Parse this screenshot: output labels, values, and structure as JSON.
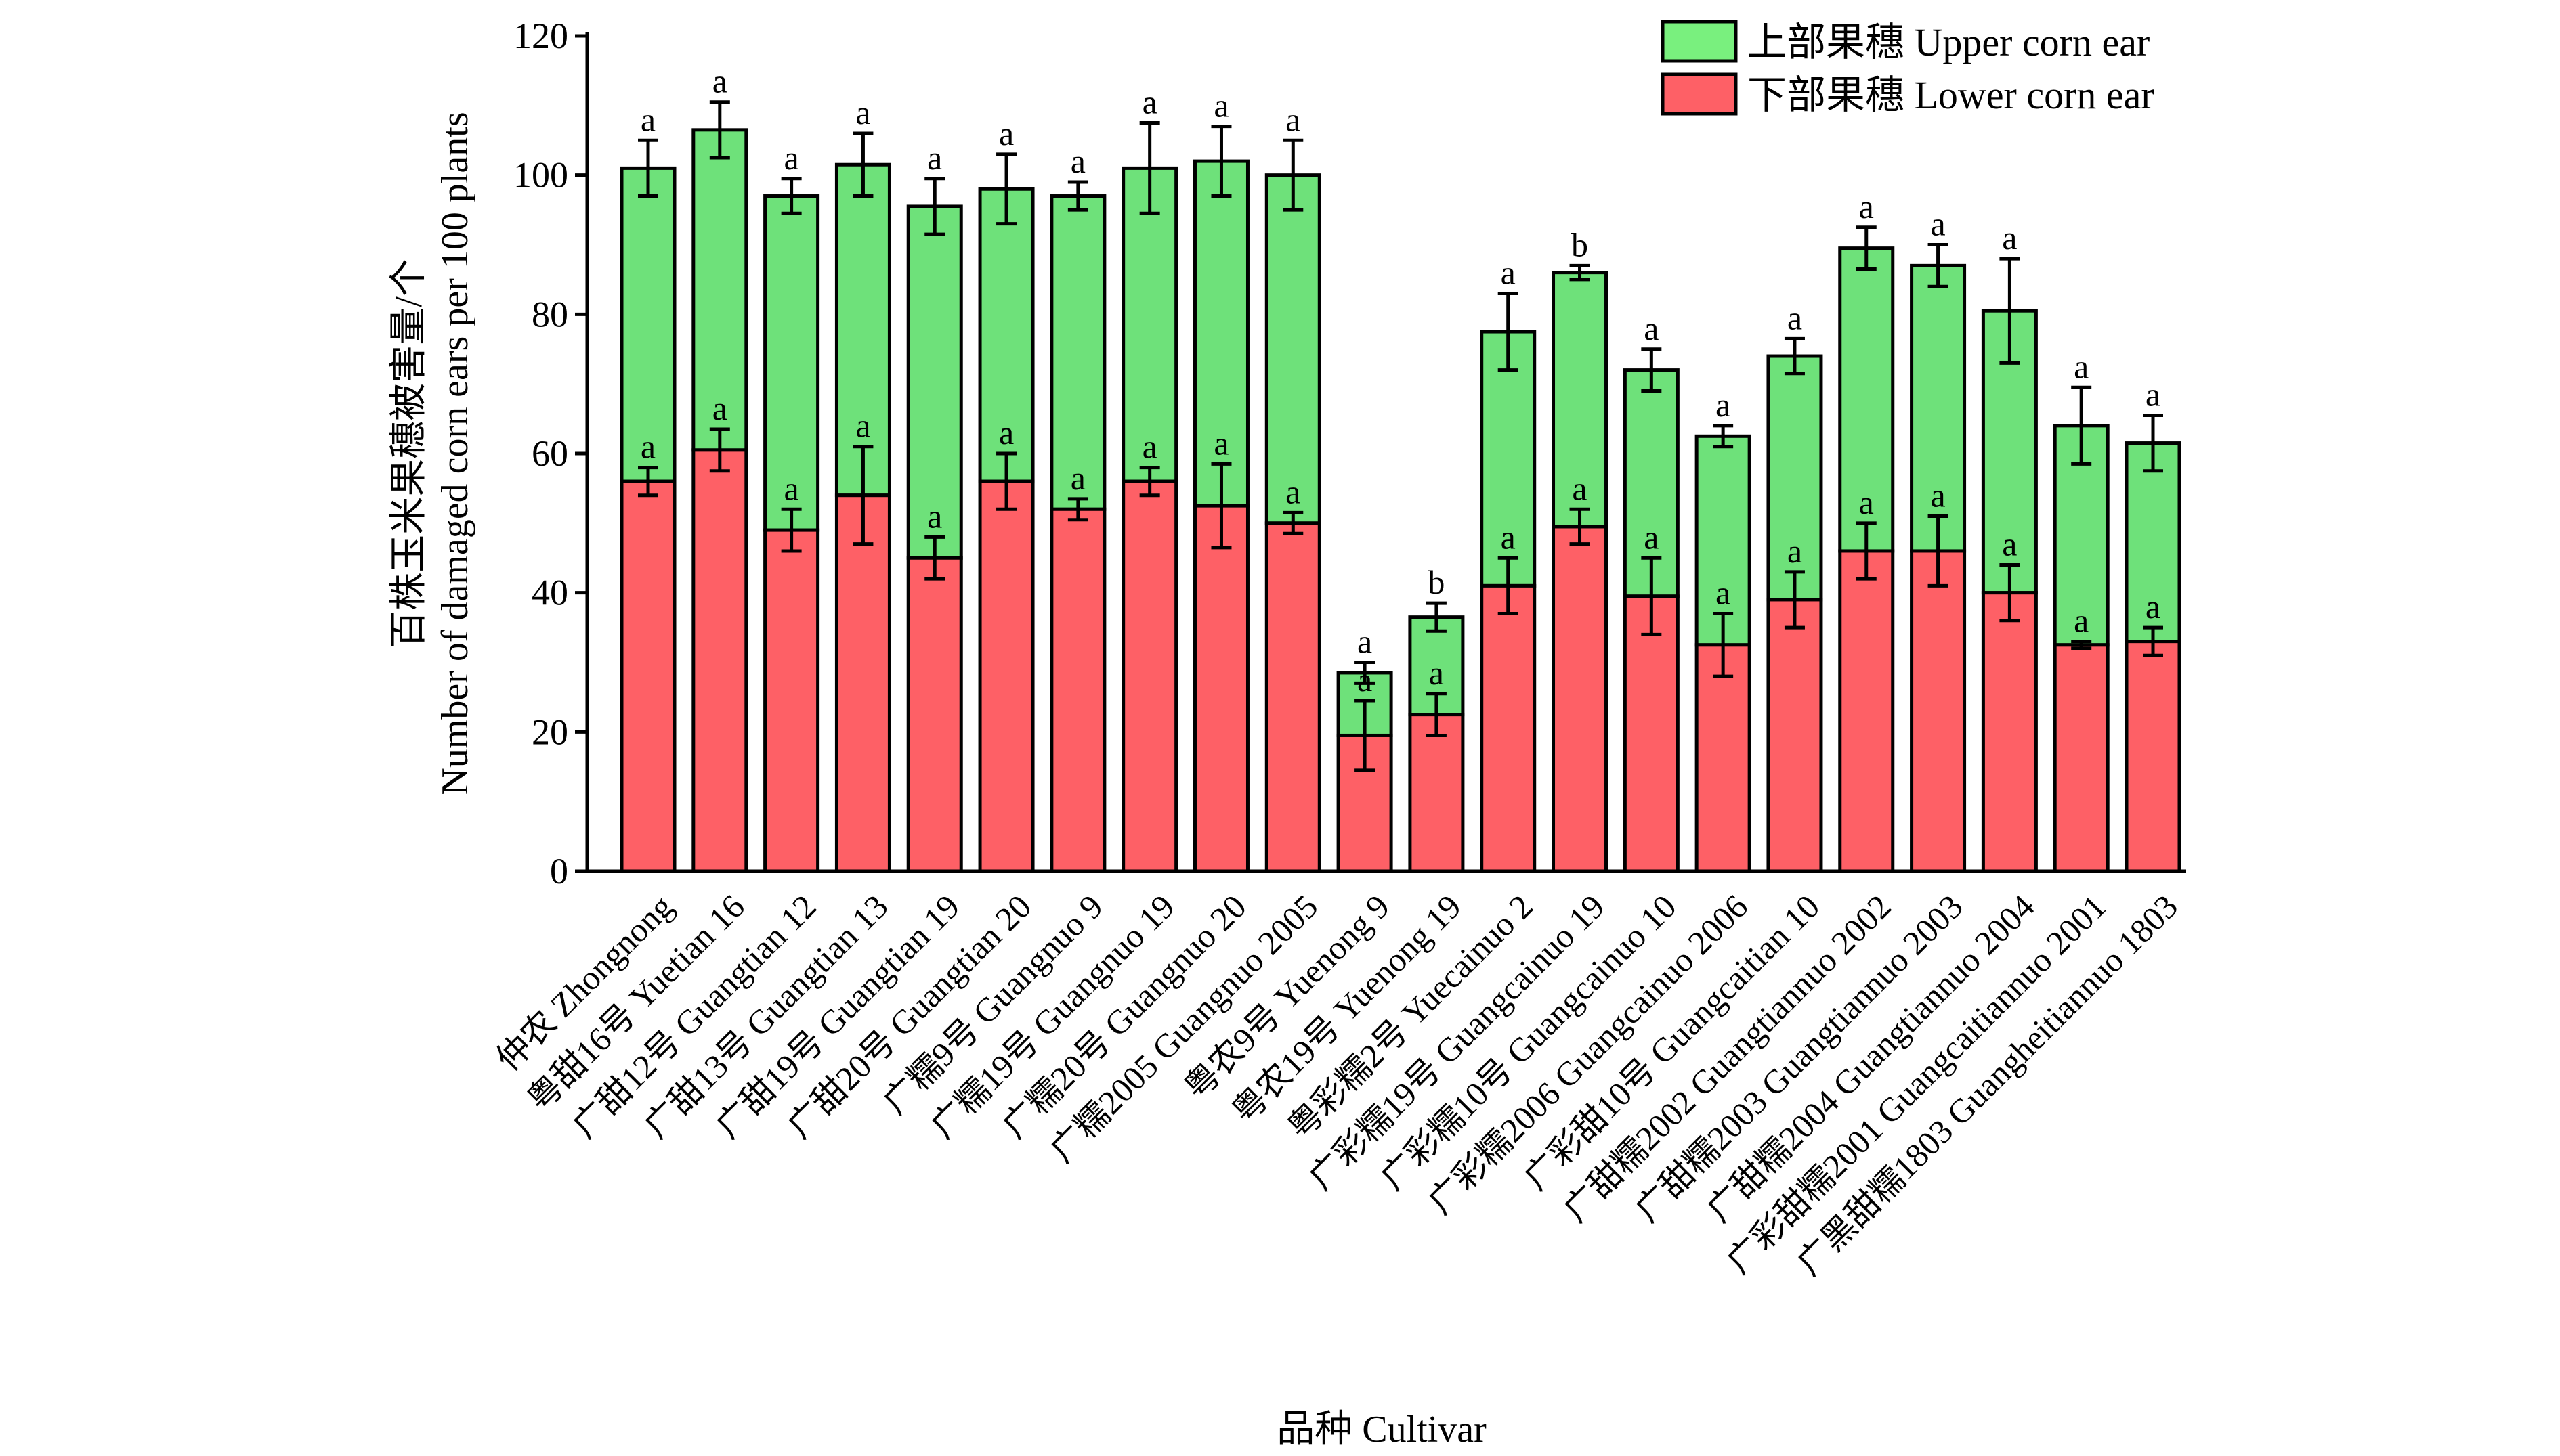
{
  "chart_data": {
    "type": "bar",
    "stacked": true,
    "title": "",
    "xlabel": "品种 Cultivar",
    "ylabel_line1": "百株玉米果穗被害量/个",
    "ylabel_line2": "Number of damaged corn ears per 100 plants",
    "ylim": [
      0,
      120
    ],
    "yticks": [
      "0",
      "20",
      "40",
      "60",
      "80",
      "100",
      "120"
    ],
    "legend_position": "top-right",
    "categories": [
      "仲农 Zhongnong",
      "粤甜16号 Yuetian 16",
      "广甜12号 Guangtian 12",
      "广甜13号 Guangtian 13",
      "广甜19号 Guangtian 19",
      "广甜20号 Guangtian 20",
      "广糯9号 Guangnuo 9",
      "广糯19号 Guangnuo 19",
      "广糯20号 Guangnuo 20",
      "广糯2005 Guangnuo 2005",
      "粤农9号 Yuenong 9",
      "粤农19号 Yuenong 19",
      "粤彩糯2号 Yuecainuo 2",
      "广彩糯19号 Guangcainuo 19",
      "广彩糯10号 Guangcainuo 10",
      "广彩糯2006 Guangcainuo 2006",
      "广彩甜10号 Guangcaitian 10",
      "广甜糯2002 Guangtiannuo 2002",
      "广甜糯2003 Guangtiannuo 2003",
      "广甜糯2004 Guangtiannuo 2004",
      "广彩甜糯2001 Guangcaitiannuo 2001",
      "广黑甜糯1803 Guangheitiannuo 1803"
    ],
    "series": [
      {
        "name": "下部果穗 Lower corn ear",
        "color": "#fe6066",
        "values": [
          56,
          60.5,
          49,
          54,
          45,
          56,
          52,
          56,
          52.5,
          50,
          19.5,
          22.5,
          41,
          49.5,
          39.5,
          32.5,
          39,
          46,
          46,
          40,
          32.5,
          33
        ],
        "errors": [
          2,
          3,
          3,
          7,
          3,
          4,
          1.5,
          2,
          6,
          1.5,
          5,
          3,
          4,
          2.5,
          5.5,
          4.5,
          4,
          4,
          5,
          4,
          0.5,
          2
        ],
        "letters": [
          "a",
          "a",
          "a",
          "a",
          "a",
          "a",
          "a",
          "a",
          "a",
          "a",
          "a",
          "a",
          "a",
          "a",
          "a",
          "a",
          "a",
          "a",
          "a",
          "a",
          "a",
          "a"
        ]
      },
      {
        "name": "上部果穗 Upper corn ear",
        "color": "#6ee17a",
        "totals": [
          101,
          106.5,
          97,
          101.5,
          95.5,
          98,
          97,
          101,
          102,
          100,
          28.5,
          36.5,
          77.5,
          86,
          72,
          62.5,
          74,
          89.5,
          87,
          80.5,
          64,
          61.5
        ],
        "errors": [
          4,
          4,
          2.5,
          4.5,
          4,
          5,
          2,
          6.5,
          5,
          5,
          1.5,
          2,
          5.5,
          1,
          3,
          1.5,
          2.5,
          3,
          3,
          7.5,
          5.5,
          4
        ],
        "letters": [
          "a",
          "a",
          "a",
          "a",
          "a",
          "a",
          "a",
          "a",
          "a",
          "a",
          "a",
          "b",
          "a",
          "b",
          "a",
          "a",
          "a",
          "a",
          "a",
          "a",
          "a",
          "a"
        ]
      }
    ]
  }
}
